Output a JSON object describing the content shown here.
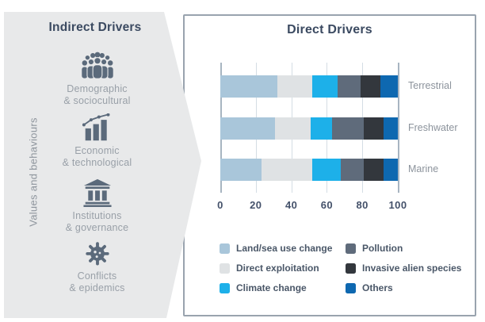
{
  "indirect_panel": {
    "title": "Indirect Drivers",
    "side_label": "Values and behaviours",
    "items": [
      {
        "icon": "people-group-icon",
        "line1": "Demographic",
        "line2": "& sociocultural"
      },
      {
        "icon": "growth-chart-icon",
        "line1": "Economic",
        "line2": "& technological"
      },
      {
        "icon": "institution-icon",
        "line1": "Institutions",
        "line2": "& governance"
      },
      {
        "icon": "virus-icon",
        "line1": "Conflicts",
        "line2": "& epidemics"
      }
    ]
  },
  "direct_panel": {
    "title": "Direct Drivers"
  },
  "chart_data": {
    "type": "bar",
    "variant": "horizontal-stacked",
    "title": "Direct Drivers",
    "categories": [
      "Terrestrial",
      "Freshwater",
      "Marine"
    ],
    "series": [
      {
        "name": "Land/sea use change",
        "color": "#a9c6da",
        "values": [
          32,
          31,
          23
        ]
      },
      {
        "name": "Direct exploitation",
        "color": "#dfe2e4",
        "values": [
          20,
          20,
          29
        ]
      },
      {
        "name": "Climate change",
        "color": "#1db0e9",
        "values": [
          14,
          12,
          16
        ]
      },
      {
        "name": "Pollution",
        "color": "#5f6b7b",
        "values": [
          13,
          18,
          13
        ]
      },
      {
        "name": "Invasive alien species",
        "color": "#33373d",
        "values": [
          11,
          11,
          11
        ]
      },
      {
        "name": "Others",
        "color": "#0e68b0",
        "values": [
          10,
          8,
          8
        ]
      }
    ],
    "xlim": [
      0,
      100
    ],
    "x_ticks": [
      0,
      20,
      40,
      60,
      80,
      100
    ],
    "grid": true,
    "legend_position": "bottom-two-columns"
  },
  "colors": {
    "panel_background": "#e8e9ea",
    "title_text": "#3b4a61",
    "icon_slate": "#5b6a7b",
    "muted_label": "#99a0a8",
    "box_border": "#99a3ae",
    "gridline": "#d4dde4",
    "gridline_edge": "#a8b5c1"
  }
}
